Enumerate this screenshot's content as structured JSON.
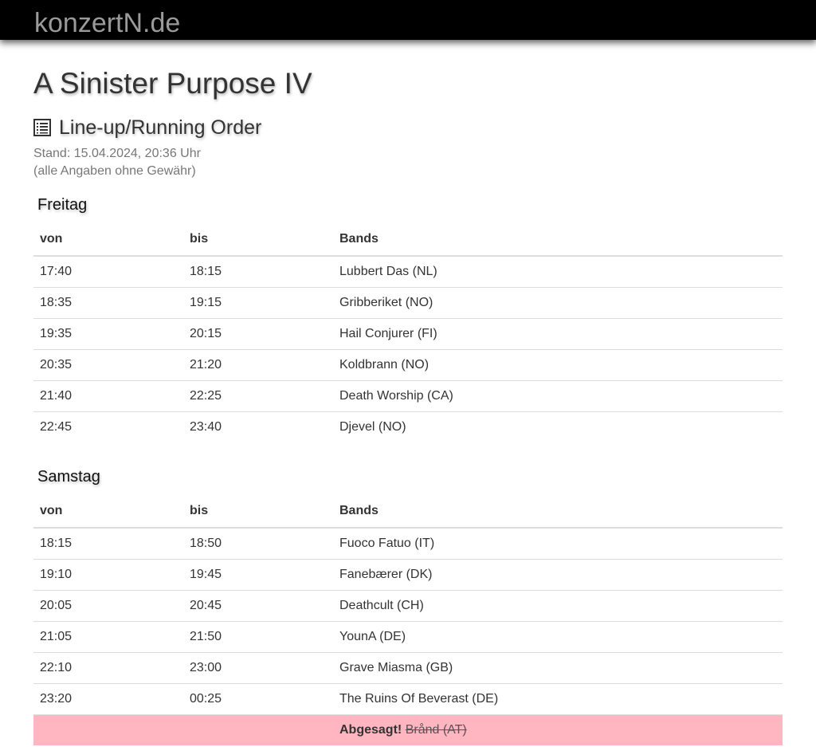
{
  "site": {
    "brand": "konzertN.de"
  },
  "page": {
    "title": "A Sinister Purpose IV",
    "subtitle": "Line-up/Running Order",
    "subtitle_icon": "list-icon",
    "stand": "Stand: 15.04.2024, 20:36 Uhr",
    "disclaimer": "(alle Angaben ohne Gewähr)"
  },
  "columns": {
    "from": "von",
    "to": "bis",
    "bands": "Bands"
  },
  "days": [
    {
      "name": "Freitag",
      "rows": [
        {
          "von": "17:40",
          "bis": "18:15",
          "band": "Lubbert Das (NL)"
        },
        {
          "von": "18:35",
          "bis": "19:15",
          "band": "Gribberiket (NO)"
        },
        {
          "von": "19:35",
          "bis": "20:15",
          "band": "Hail Conjurer (FI)"
        },
        {
          "von": "20:35",
          "bis": "21:20",
          "band": "Koldbrann (NO)"
        },
        {
          "von": "21:40",
          "bis": "22:25",
          "band": "Death Worship (CA)"
        },
        {
          "von": "22:45",
          "bis": "23:40",
          "band": "Djevel (NO)"
        }
      ]
    },
    {
      "name": "Samstag",
      "rows": [
        {
          "von": "18:15",
          "bis": "18:50",
          "band": "Fuoco Fatuo (IT)"
        },
        {
          "von": "19:10",
          "bis": "19:45",
          "band": "Fanebærer (DK)"
        },
        {
          "von": "20:05",
          "bis": "20:45",
          "band": "Deathcult (CH)"
        },
        {
          "von": "21:05",
          "bis": "21:50",
          "band": "YounA (DE)"
        },
        {
          "von": "22:10",
          "bis": "23:00",
          "band": "Grave Miasma (GB)"
        },
        {
          "von": "23:20",
          "bis": "00:25",
          "band": "The Ruins Of Beverast (DE)"
        }
      ],
      "cancelled": {
        "label": "Abgesagt!",
        "band": "Brånd (AT)",
        "color": "#ffb6c1"
      }
    }
  ]
}
